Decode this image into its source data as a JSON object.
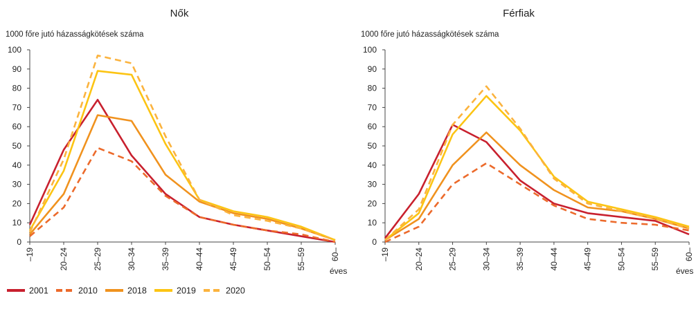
{
  "chart_data": [
    {
      "type": "line",
      "title": "Nők",
      "ylabel": "1000 főre jutó házasságkötések száma",
      "xunit": "éves",
      "ylim": [
        0,
        100
      ],
      "yticks": [
        0,
        10,
        20,
        30,
        40,
        50,
        60,
        70,
        80,
        90,
        100
      ],
      "categories": [
        "–19",
        "20–24",
        "25–29",
        "30–34",
        "35–39",
        "40–44",
        "45–49",
        "50–54",
        "55–59",
        "60–"
      ],
      "grid": false,
      "series": [
        {
          "name": "2001",
          "values": [
            9,
            48,
            74,
            45,
            25,
            13,
            9,
            6,
            3,
            0
          ]
        },
        {
          "name": "2010",
          "values": [
            3,
            18,
            49,
            42,
            24,
            13,
            9,
            6,
            4,
            0
          ]
        },
        {
          "name": "2018",
          "values": [
            4,
            25,
            66,
            63,
            35,
            21,
            15,
            12,
            7,
            1
          ]
        },
        {
          "name": "2019",
          "values": [
            6,
            37,
            89,
            87,
            51,
            22,
            16,
            13,
            8,
            1
          ]
        },
        {
          "name": "2020",
          "values": [
            5,
            43,
            97,
            93,
            55,
            22,
            14,
            11,
            7,
            1
          ]
        }
      ]
    },
    {
      "type": "line",
      "title": "Férfiak",
      "ylabel": "1000 főre jutó házasságkötések száma",
      "xunit": "éves",
      "ylim": [
        0,
        100
      ],
      "yticks": [
        0,
        10,
        20,
        30,
        40,
        50,
        60,
        70,
        80,
        90,
        100
      ],
      "categories": [
        "–19",
        "20–24",
        "25–29",
        "30–34",
        "35–39",
        "40–44",
        "45–49",
        "50–54",
        "55–59",
        "60–"
      ],
      "grid": false,
      "series": [
        {
          "name": "2001",
          "values": [
            2,
            25,
            61,
            52,
            32,
            20,
            15,
            13,
            11,
            4
          ]
        },
        {
          "name": "2010",
          "values": [
            0,
            8,
            30,
            41,
            30,
            19,
            12,
            10,
            9,
            6
          ]
        },
        {
          "name": "2018",
          "values": [
            1,
            12,
            40,
            57,
            40,
            27,
            18,
            16,
            12,
            7
          ]
        },
        {
          "name": "2019",
          "values": [
            1,
            15,
            56,
            76,
            58,
            34,
            21,
            17,
            13,
            8
          ]
        },
        {
          "name": "2020",
          "values": [
            1,
            17,
            61,
            81,
            59,
            33,
            20,
            16,
            12,
            7
          ]
        }
      ]
    }
  ],
  "legend": {
    "position": "bottom-left",
    "items": [
      {
        "label": "2001",
        "color": "#c8202e",
        "dash": false
      },
      {
        "label": "2010",
        "color": "#ec6a2b",
        "dash": true
      },
      {
        "label": "2018",
        "color": "#f0921e",
        "dash": false
      },
      {
        "label": "2019",
        "color": "#fcc413",
        "dash": false
      },
      {
        "label": "2020",
        "color": "#fbb33e",
        "dash": true
      }
    ]
  }
}
